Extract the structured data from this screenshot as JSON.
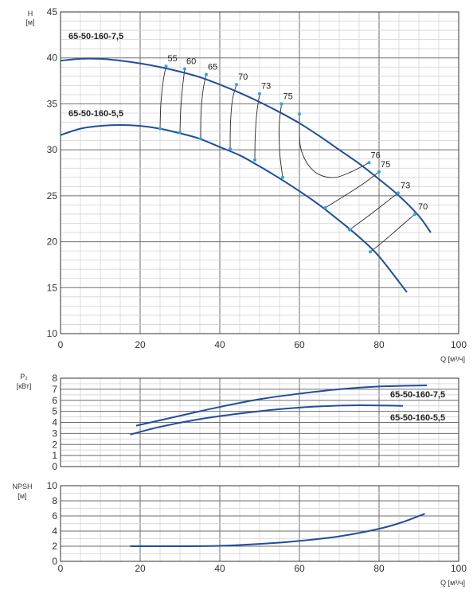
{
  "colors": {
    "curve": "#1f4e9c",
    "marker": "#29a8e0",
    "grid_major": "#6e6e6e",
    "grid_minor": "#d4d4d4",
    "iso": "#2a2a2a"
  },
  "chart_data": [
    {
      "type": "line",
      "name": "H-Q",
      "ylabel_lines": [
        "H",
        "[м]"
      ],
      "xlabel": "Q [м³/ч]",
      "xlim": [
        0,
        100
      ],
      "ylim": [
        10,
        45
      ],
      "xticks": [
        0,
        20,
        40,
        60,
        80,
        100
      ],
      "yticks": [
        10,
        15,
        20,
        25,
        30,
        35,
        40,
        45
      ],
      "grid": true,
      "series": [
        {
          "name": "65-50-160-7,5",
          "points": [
            [
              0,
              39.7
            ],
            [
              5,
              39.9
            ],
            [
              10,
              39.9
            ],
            [
              15,
              39.7
            ],
            [
              20,
              39.4
            ],
            [
              25,
              39.0
            ],
            [
              30,
              38.5
            ],
            [
              35,
              37.9
            ],
            [
              40,
              37.1
            ],
            [
              45,
              36.2
            ],
            [
              50,
              35.2
            ],
            [
              55,
              34.1
            ],
            [
              60,
              32.9
            ],
            [
              65,
              31.5
            ],
            [
              70,
              30.0
            ],
            [
              75,
              28.5
            ],
            [
              80,
              26.8
            ],
            [
              85,
              25.0
            ],
            [
              90,
              22.8
            ],
            [
              93,
              21.0
            ]
          ]
        },
        {
          "name": "65-50-160-5,5",
          "points": [
            [
              0,
              31.6
            ],
            [
              5,
              32.3
            ],
            [
              10,
              32.6
            ],
            [
              15,
              32.7
            ],
            [
              20,
              32.6
            ],
            [
              25,
              32.3
            ],
            [
              30,
              31.8
            ],
            [
              35,
              31.2
            ],
            [
              40,
              30.3
            ],
            [
              45,
              29.4
            ],
            [
              50,
              28.2
            ],
            [
              55,
              26.9
            ],
            [
              60,
              25.5
            ],
            [
              65,
              24.0
            ],
            [
              70,
              22.3
            ],
            [
              75,
              20.5
            ],
            [
              80,
              18.4
            ],
            [
              87,
              14.5
            ]
          ]
        }
      ],
      "efficiency_lines": [
        {
          "label": "55",
          "points": [
            [
              25,
              32.3
            ],
            [
              25.2,
              35.0
            ],
            [
              25.8,
              37.5
            ],
            [
              26.5,
              39.1
            ]
          ]
        },
        {
          "label": "60",
          "points": [
            [
              30,
              31.9
            ],
            [
              30.2,
              34.5
            ],
            [
              30.7,
              37.0
            ],
            [
              31.2,
              38.8
            ]
          ]
        },
        {
          "label": "65",
          "points": [
            [
              35.2,
              31.2
            ],
            [
              35.3,
              34.0
            ],
            [
              35.8,
              36.5
            ],
            [
              36.6,
              38.2
            ]
          ]
        },
        {
          "label": "70",
          "points": [
            [
              42.6,
              30.1
            ],
            [
              42.7,
              33.0
            ],
            [
              43.2,
              35.5
            ],
            [
              44.2,
              37.1
            ]
          ]
        },
        {
          "label": "73",
          "points": [
            [
              48.8,
              28.9
            ],
            [
              48.9,
              31.5
            ],
            [
              49.3,
              34.0
            ],
            [
              50.0,
              36.1
            ]
          ]
        },
        {
          "label": "75",
          "points": [
            [
              55.8,
              27.0
            ],
            [
              55.1,
              29.5
            ],
            [
              54.9,
              32.5
            ],
            [
              55.5,
              35.0
            ]
          ]
        },
        {
          "label": "76",
          "points": [
            [
              60,
              33.9
            ],
            [
              60.2,
              30.5
            ],
            [
              62.0,
              28.5
            ],
            [
              65.0,
              27.3
            ],
            [
              69.0,
              27.0
            ],
            [
              73.0,
              27.6
            ],
            [
              77.5,
              28.6
            ]
          ]
        },
        {
          "label": "75",
          "points": [
            [
              66.5,
              23.7
            ],
            [
              71.0,
              24.9
            ],
            [
              76.0,
              26.3
            ],
            [
              80.0,
              27.6
            ]
          ]
        },
        {
          "label": "73",
          "points": [
            [
              72.6,
              21.3
            ],
            [
              77.0,
              22.7
            ],
            [
              81.5,
              24.2
            ],
            [
              84.8,
              25.3
            ]
          ]
        },
        {
          "label": "70",
          "points": [
            [
              77.8,
              18.9
            ],
            [
              81.0,
              20.0
            ],
            [
              85.0,
              21.5
            ],
            [
              89.0,
              23.0
            ]
          ]
        }
      ],
      "series_labels": [
        "65-50-160-7,5",
        "65-50-160-5,5"
      ]
    },
    {
      "type": "line",
      "name": "P2-Q",
      "ylabel_lines": [
        "P₂",
        "[кВт]"
      ],
      "xlim": [
        0,
        100
      ],
      "ylim": [
        0,
        8
      ],
      "yticks": [
        0,
        1,
        2,
        3,
        4,
        5,
        6,
        7,
        8
      ],
      "grid": true,
      "series": [
        {
          "name": "65-50-160-7,5",
          "points": [
            [
              19,
              3.7
            ],
            [
              30,
              4.6
            ],
            [
              40,
              5.4
            ],
            [
              50,
              6.1
            ],
            [
              60,
              6.6
            ],
            [
              70,
              7.0
            ],
            [
              80,
              7.25
            ],
            [
              92,
              7.35
            ]
          ]
        },
        {
          "name": "65-50-160-5,5",
          "points": [
            [
              17.5,
              2.9
            ],
            [
              25,
              3.6
            ],
            [
              35,
              4.3
            ],
            [
              45,
              4.8
            ],
            [
              55,
              5.2
            ],
            [
              65,
              5.45
            ],
            [
              75,
              5.55
            ],
            [
              86,
              5.5
            ]
          ]
        }
      ],
      "series_labels": [
        "65-50-160-7,5",
        "65-50-160-5,5"
      ]
    },
    {
      "type": "line",
      "name": "NPSH-Q",
      "ylabel_lines": [
        "NPSH",
        "[м]"
      ],
      "xlabel": "Q [м³/ч]",
      "xlim": [
        0,
        100
      ],
      "ylim": [
        0,
        10
      ],
      "xticks": [
        0,
        20,
        40,
        60,
        80,
        100
      ],
      "yticks": [
        0,
        2,
        4,
        6,
        8,
        10
      ],
      "grid": true,
      "series": [
        {
          "name": "NPSH",
          "points": [
            [
              17.5,
              2.0
            ],
            [
              30,
              2.0
            ],
            [
              40,
              2.05
            ],
            [
              50,
              2.3
            ],
            [
              60,
              2.7
            ],
            [
              70,
              3.3
            ],
            [
              80,
              4.3
            ],
            [
              86,
              5.2
            ],
            [
              91.5,
              6.3
            ]
          ]
        }
      ]
    }
  ]
}
